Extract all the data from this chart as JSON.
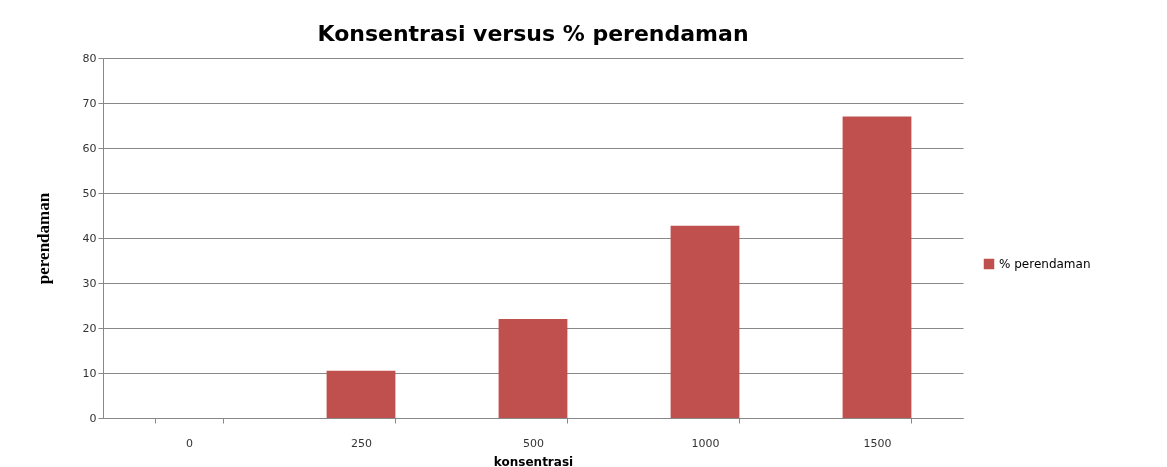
{
  "chart_data": {
    "type": "bar",
    "title": "Konsentrasi  versus % perendaman",
    "xlabel": "konsentrasi",
    "ylabel": "perendaman",
    "categories": [
      "0",
      "250",
      "500",
      "1000",
      "1500"
    ],
    "series": [
      {
        "name": "% perendaman",
        "color": "#c0504d",
        "values": [
          0,
          10.5,
          22,
          42.7,
          67
        ]
      }
    ],
    "ylim": [
      0,
      80
    ],
    "yticks": [
      0,
      10,
      20,
      30,
      40,
      50,
      60,
      70,
      80
    ],
    "grid": "y",
    "legend": "right"
  }
}
